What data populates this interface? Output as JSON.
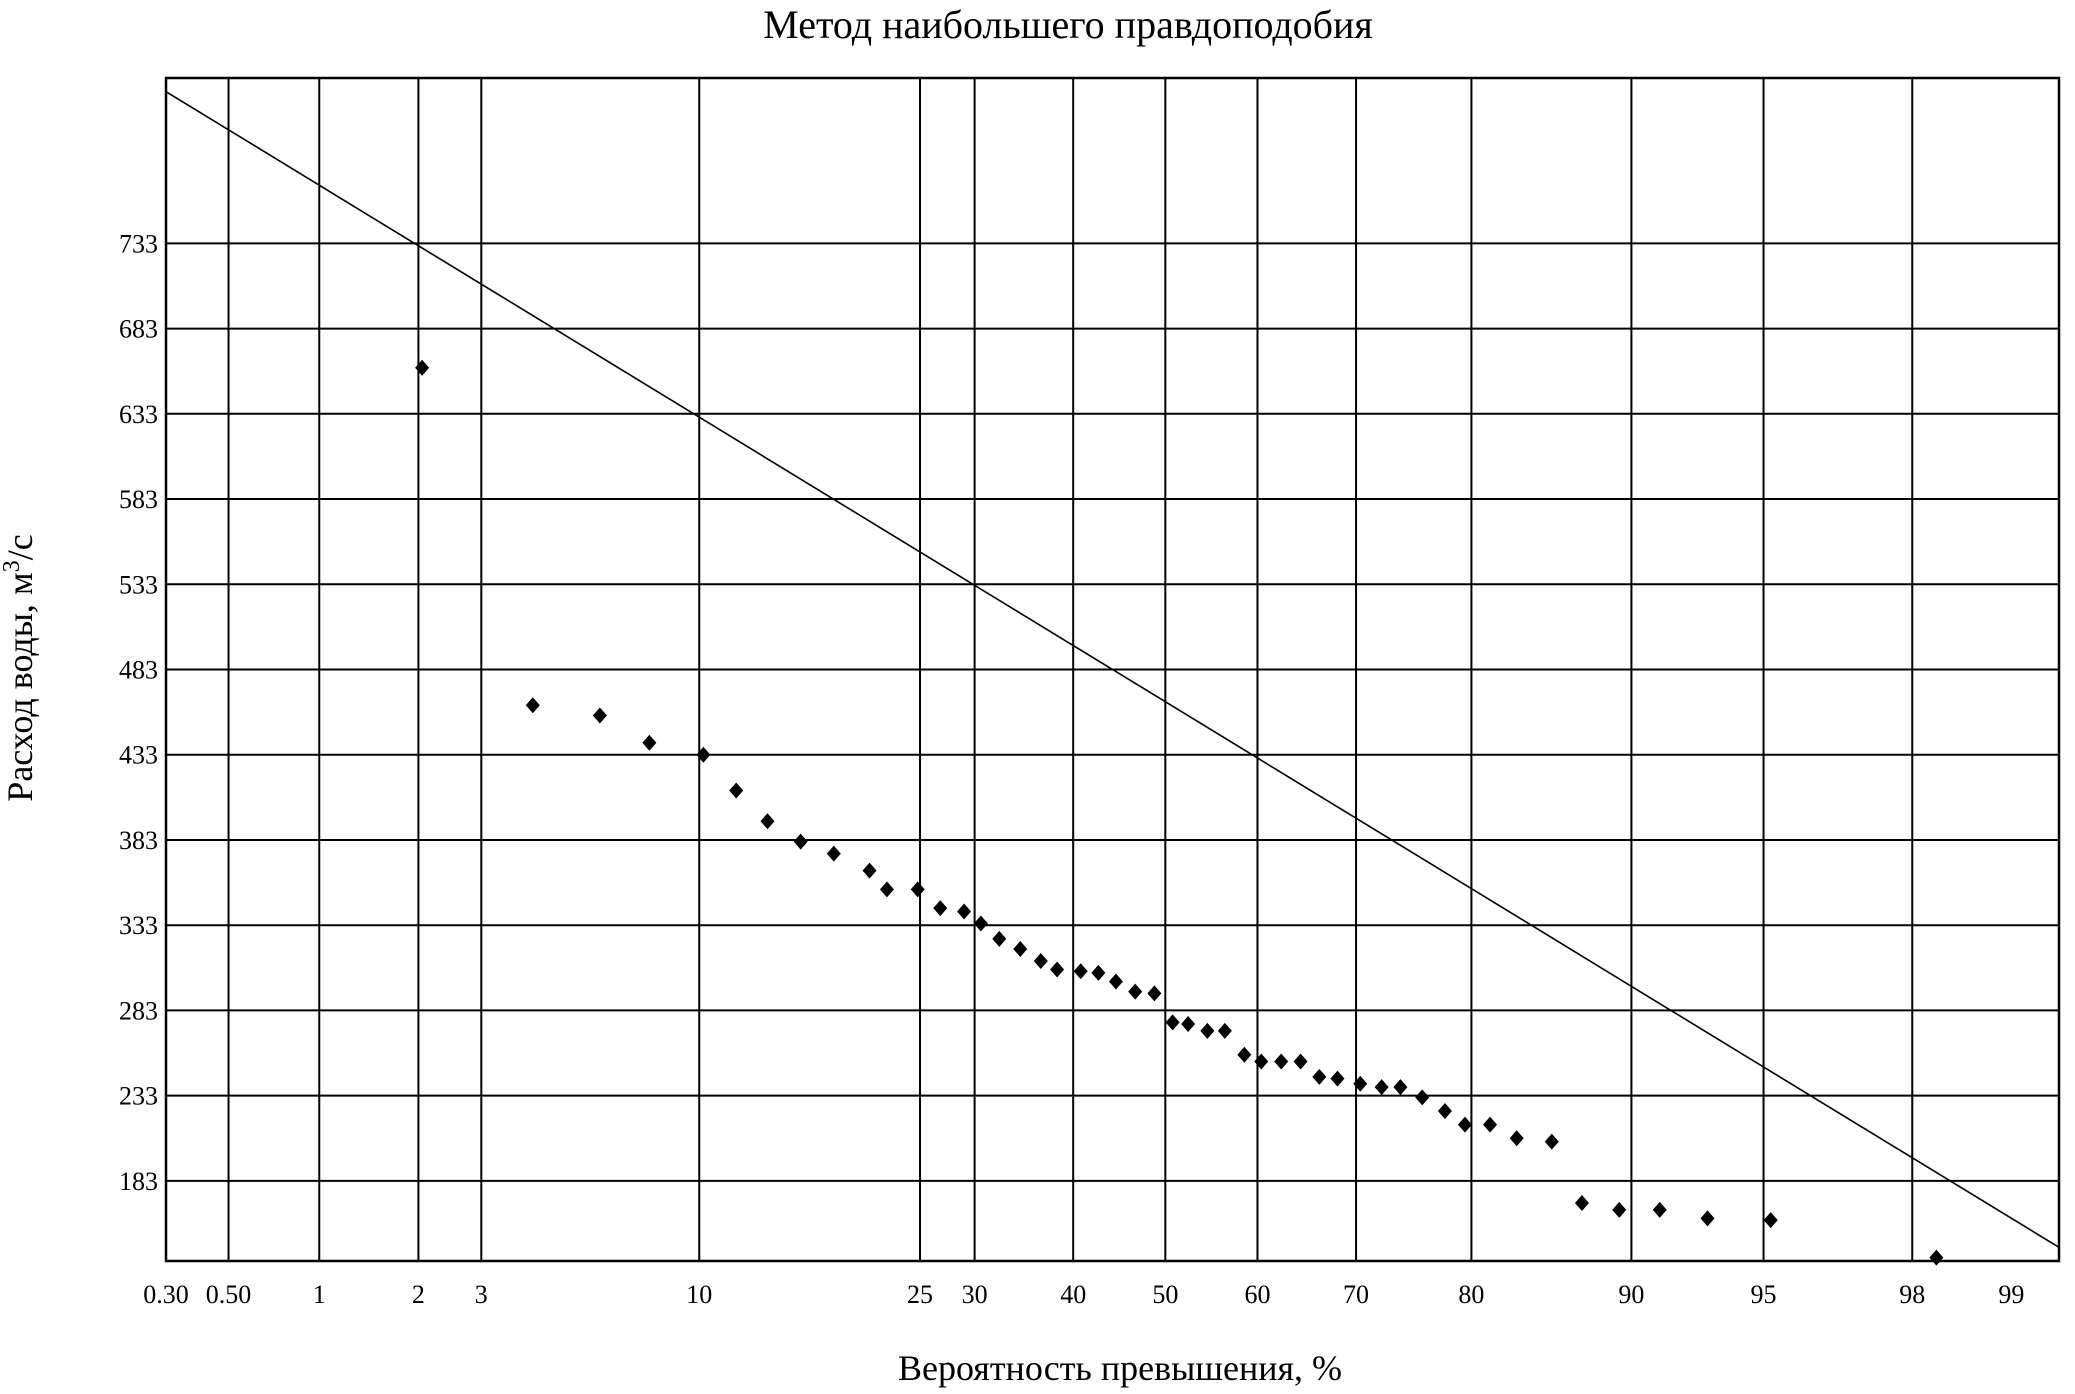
{
  "chart_data": {
    "type": "scatter",
    "title": "Метод наибольшего правдоподобия",
    "xlabel": "Вероятность превышения, %",
    "ylabel_main": "Расход воды, м",
    "ylabel_sup": "3",
    "ylabel_tail": "/с",
    "x_scale": "probability",
    "xlim": [
      0.3,
      99.3
    ],
    "ylim": [
      136,
      830
    ],
    "x_ticks": [
      0.3,
      0.5,
      1,
      2,
      3,
      10,
      25,
      30,
      40,
      50,
      60,
      70,
      80,
      90,
      95,
      98,
      99
    ],
    "x_tick_labels": [
      "0.30",
      "0.50",
      "1",
      "2",
      "3",
      "10",
      "25",
      "30",
      "40",
      "50",
      "60",
      "70",
      "80",
      "90",
      "95",
      "98",
      "99"
    ],
    "y_ticks": [
      183,
      233,
      283,
      333,
      383,
      433,
      483,
      533,
      583,
      633,
      683,
      733
    ],
    "y_tick_labels": [
      "183",
      "233",
      "283",
      "333",
      "383",
      "433",
      "483",
      "533",
      "583",
      "633",
      "683",
      "733"
    ],
    "grid": true,
    "legend": "none",
    "fit_line": {
      "x": [
        0.3,
        99.3
      ],
      "y": [
        822,
        144
      ]
    },
    "points": {
      "x": [
        2.05,
        4.1,
        6,
        7.8,
        10.2,
        11.9,
        13.7,
        15.8,
        18.1,
        20.8,
        22.2,
        24.8,
        26.8,
        29,
        30.6,
        32.4,
        34.5,
        36.6,
        38.3,
        40.8,
        42.7,
        44.6,
        46.7,
        48.8,
        50.8,
        52.5,
        54.6,
        56.5,
        58.6,
        60.4,
        62.5,
        64.5,
        66.4,
        68.2,
        70.4,
        72.4,
        74.1,
        76,
        77.9,
        79.5,
        81.4,
        83.3,
        85.6,
        87.4,
        89.4,
        91.3,
        93.2,
        95.2,
        98.3
      ],
      "y": [
        660,
        462,
        456,
        440,
        433,
        412,
        394,
        382,
        375,
        365,
        354,
        354,
        343,
        341,
        334,
        325,
        319,
        312,
        307,
        306,
        305,
        300,
        294,
        293,
        276,
        275,
        271,
        271,
        257,
        253,
        253,
        253,
        244,
        243,
        240,
        238,
        238,
        232,
        224,
        216,
        216,
        208,
        206,
        170,
        166,
        166,
        161,
        160,
        138
      ]
    }
  }
}
